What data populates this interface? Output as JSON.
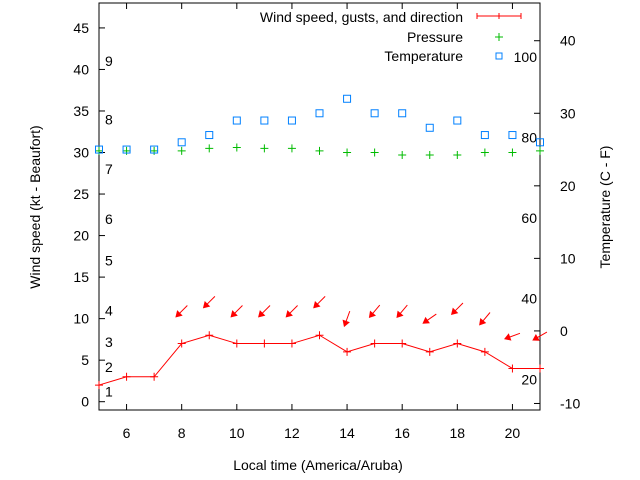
{
  "chart_data": {
    "type": "line",
    "xlabel": "Local time (America/Aruba)",
    "ylabel": "Wind speed (kt - Beaufort)",
    "y2label": "Temperature (C - F)",
    "xlim": [
      5,
      21
    ],
    "ylim": [
      -1,
      48
    ],
    "y2lim": [
      -10.9,
      45.2
    ],
    "x_ticks": [
      6,
      8,
      10,
      12,
      14,
      16,
      18,
      20
    ],
    "y_ticks": [
      0,
      5,
      10,
      15,
      20,
      25,
      30,
      35,
      40,
      45
    ],
    "y2_ticks": [
      -10,
      0,
      10,
      20,
      30,
      40
    ],
    "beaufort_labels": [
      {
        "label": "1",
        "kt": 1.2
      },
      {
        "label": "2",
        "kt": 4.2
      },
      {
        "label": "3",
        "kt": 7.2
      },
      {
        "label": "4",
        "kt": 11
      },
      {
        "label": "5",
        "kt": 17
      },
      {
        "label": "6",
        "kt": 22
      },
      {
        "label": "7",
        "kt": 28
      },
      {
        "label": "8",
        "kt": 34
      },
      {
        "label": "9",
        "kt": 41
      }
    ],
    "fahrenheit_labels": [
      "20",
      "40",
      "60",
      "80",
      "100"
    ],
    "legend_position": "top-right",
    "x": [
      5,
      6,
      7,
      8,
      9,
      10,
      11,
      12,
      13,
      14,
      15,
      16,
      17,
      18,
      19,
      20,
      21
    ],
    "series": [
      {
        "name": "Wind speed, gusts, and direction",
        "color": "#ff0000",
        "axis": "left",
        "values": [
          2,
          3,
          3,
          7,
          8,
          7,
          7,
          7,
          8,
          6,
          7,
          7,
          6,
          7,
          6,
          4,
          4
        ],
        "arrow_hours": [
          8,
          9,
          10,
          11,
          12,
          13,
          14,
          15,
          16,
          17,
          18,
          19,
          20,
          21
        ],
        "arrow_kt": [
          10.9,
          12,
          10.9,
          10.9,
          10.9,
          12,
          10,
          10.9,
          10.9,
          10,
          11.2,
          10,
          7.9,
          7.9
        ],
        "arrow_from_deg": [
          45,
          45,
          45,
          45,
          45,
          45,
          20,
          40,
          40,
          55,
          45,
          40,
          70,
          60
        ]
      },
      {
        "name": "Pressure",
        "color": "#00bb00",
        "axis": "left",
        "values": [
          30.2,
          30.2,
          30.2,
          30.2,
          30.5,
          30.6,
          30.5,
          30.5,
          30.2,
          30.0,
          30.0,
          29.7,
          29.7,
          29.7,
          30.0,
          30.0,
          30.2
        ]
      },
      {
        "name": "Temperature",
        "color": "#0080ff",
        "axis": "right",
        "values": [
          25,
          25,
          25,
          26,
          27,
          29,
          29,
          29,
          30,
          32,
          30,
          30,
          28,
          29,
          27,
          27,
          26
        ]
      }
    ]
  }
}
